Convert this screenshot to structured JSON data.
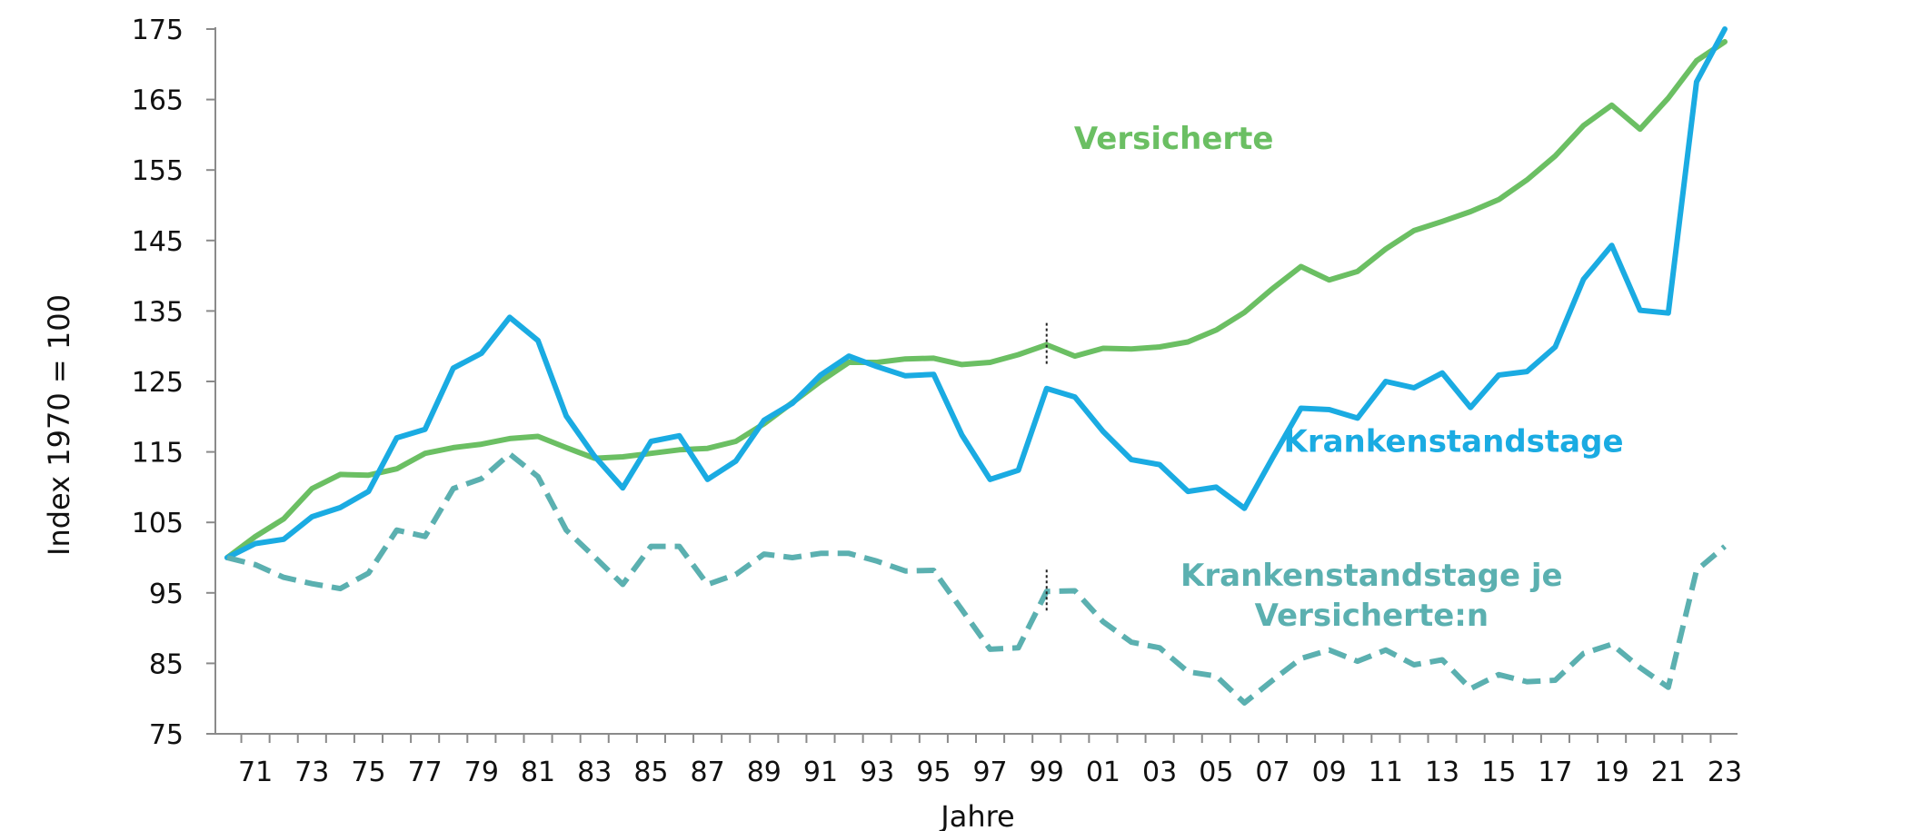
{
  "chart_data": {
    "type": "line",
    "title": "",
    "xlabel": "Jahre",
    "ylabel": "Index 1970 = 100",
    "ylim": [
      75,
      175
    ],
    "yticks": [
      75,
      85,
      95,
      105,
      115,
      125,
      135,
      145,
      155,
      165,
      175
    ],
    "xlim": [
      1970,
      2023
    ],
    "x": [
      1970,
      1971,
      1972,
      1973,
      1974,
      1975,
      1976,
      1977,
      1978,
      1979,
      1980,
      1981,
      1982,
      1983,
      1984,
      1985,
      1986,
      1987,
      1988,
      1989,
      1990,
      1991,
      1992,
      1993,
      1994,
      1995,
      1996,
      1997,
      1998,
      1999,
      2000,
      2001,
      2002,
      2003,
      2004,
      2005,
      2006,
      2007,
      2008,
      2009,
      2010,
      2011,
      2012,
      2013,
      2014,
      2015,
      2016,
      2017,
      2018,
      2019,
      2020,
      2021,
      2022,
      2023
    ],
    "xtick_labels": [
      "71",
      "73",
      "75",
      "77",
      "79",
      "81",
      "83",
      "85",
      "87",
      "89",
      "91",
      "93",
      "95",
      "97",
      "99",
      "01",
      "03",
      "05",
      "07",
      "09",
      "11",
      "13",
      "15",
      "17",
      "19",
      "21",
      "23"
    ],
    "xtick_years": [
      1971,
      1973,
      1975,
      1977,
      1979,
      1981,
      1983,
      1985,
      1987,
      1989,
      1991,
      1993,
      1995,
      1997,
      1999,
      2001,
      2003,
      2005,
      2007,
      2009,
      2011,
      2013,
      2015,
      2017,
      2019,
      2021,
      2023
    ],
    "break_year": 1999,
    "series": [
      {
        "name": "Versicherte",
        "color": "#6BBF63",
        "style": "solid",
        "values": [
          100,
          103,
          105.5,
          109.8,
          111.8,
          111.7,
          112.6,
          114.8,
          115.6,
          116.1,
          116.9,
          117.2,
          115.6,
          114.1,
          114.3,
          114.8,
          115.3,
          115.5,
          116.5,
          119,
          122,
          125,
          127.7,
          127.7,
          128.2,
          128.3,
          127.4,
          127.7,
          128.8,
          130.2,
          128.6,
          129.7,
          129.6,
          129.9,
          130.6,
          132.3,
          134.8,
          138.2,
          141.3,
          139.4,
          140.6,
          143.8,
          146.4,
          147.7,
          149.1,
          150.8,
          153.6,
          157,
          161.3,
          164.2,
          160.8,
          165.2,
          170.5,
          173.2
        ]
      },
      {
        "name": "Krankenstandstage",
        "color": "#1AABE2",
        "style": "solid",
        "values": [
          100,
          102,
          102.6,
          105.8,
          107.1,
          109.4,
          117,
          118.2,
          126.9,
          129,
          134.1,
          130.8,
          120.1,
          114.4,
          109.9,
          116.5,
          117.3,
          111.1,
          113.7,
          119.5,
          121.9,
          125.9,
          128.6,
          127.1,
          125.8,
          126,
          117.4,
          111.1,
          112.4,
          124,
          122.8,
          117.9,
          113.9,
          113.2,
          109.4,
          110,
          107,
          114.2,
          121.2,
          121,
          119.8,
          125,
          124.1,
          126.2,
          121.3,
          125.9,
          126.4,
          129.9,
          139.5,
          144.3,
          135.1,
          134.7,
          167.5,
          175
        ]
      },
      {
        "name": "Krankenstandstage je Versicherte:n",
        "color": "#5BB0B0",
        "style": "dashed",
        "values": [
          100,
          99,
          97.2,
          96.3,
          95.6,
          97.8,
          103.9,
          103,
          109.8,
          111.2,
          114.7,
          111.5,
          103.9,
          100.1,
          96.2,
          101.6,
          101.6,
          96.2,
          97.6,
          100.5,
          100,
          100.6,
          100.6,
          99.5,
          98.1,
          98.2,
          92.6,
          87,
          87.2,
          95.2,
          95.3,
          90.9,
          88,
          87.2,
          83.8,
          83.2,
          79.4,
          82.6,
          85.7,
          86.9,
          85.3,
          86.9,
          84.8,
          85.5,
          81.4,
          83.4,
          82.4,
          82.6,
          86.4,
          87.7,
          84.4,
          81.6,
          98.2,
          101.6
        ]
      }
    ],
    "annotations": [
      {
        "series": 0,
        "text_lines": [
          "Versicherte"
        ]
      },
      {
        "series": 1,
        "text_lines": [
          "Krankenstandstage"
        ]
      },
      {
        "series": 2,
        "text_lines": [
          "Krankenstandstage je",
          "Versicherte:n"
        ]
      }
    ]
  }
}
